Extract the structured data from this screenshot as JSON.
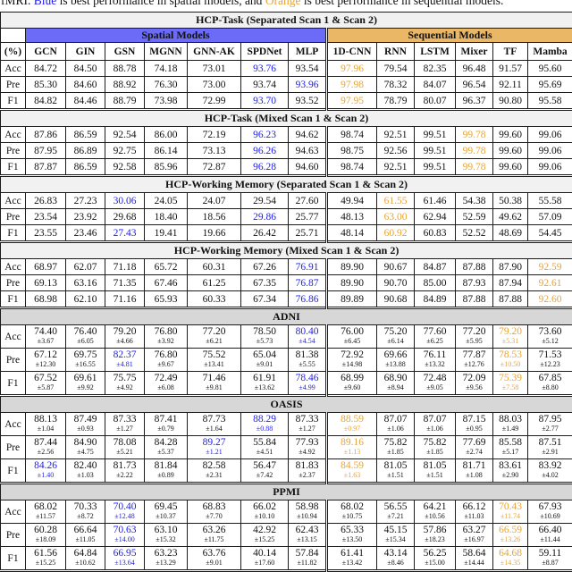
{
  "caption": {
    "prefix": "fMRI. ",
    "highlight_spatial": "Blue",
    "middle": " is best performance in spatial models, and ",
    "highlight_sequential": "Orange",
    "suffix": " is best performance in sequential models."
  },
  "colors": {
    "best_spatial_text": "#1a1aff",
    "best_sequential_text": "#e8a435",
    "spatial_band_bg": "#6b6bf7",
    "sequential_band_bg": "#e9b766",
    "section_header_light_bg": "#f1f1f1",
    "section_header_dark_bg": "#d7d7d7"
  },
  "table": {
    "group_headers": {
      "spatial": "Spatial Models",
      "sequential": "Sequential Models"
    },
    "unit_header": "(%)",
    "columns": [
      "(%)",
      "GCN",
      "GIN",
      "GSN",
      "MGNN",
      "GNN-AK",
      "SPDNet",
      "MLP",
      "1D-CNN",
      "RNN",
      "LSTM",
      "Mixer",
      "TF",
      "Mamba"
    ],
    "sections": [
      {
        "title": "HCP-Task (Separated Scan 1 & Scan 2)",
        "shade": "light",
        "rows": [
          {
            "label": "Acc",
            "values": [
              "84.72",
              "84.50",
              "88.78",
              "74.18",
              "73.01",
              "93.76",
              "93.54",
              "97.96",
              "79.54",
              "82.35",
              "96.48",
              "91.57",
              "95.60"
            ],
            "hl": {
              "5": "blue",
              "7": "orange"
            }
          },
          {
            "label": "Pre",
            "values": [
              "85.30",
              "84.60",
              "88.92",
              "76.30",
              "73.00",
              "93.74",
              "93.96",
              "97.98",
              "78.32",
              "84.07",
              "96.54",
              "92.11",
              "95.69"
            ],
            "hl": {
              "6": "blue",
              "7": "orange"
            }
          },
          {
            "label": "F1",
            "values": [
              "84.82",
              "84.46",
              "88.79",
              "73.98",
              "72.99",
              "93.70",
              "93.52",
              "97.95",
              "78.79",
              "80.07",
              "96.37",
              "90.80",
              "95.58"
            ],
            "hl": {
              "5": "blue",
              "7": "orange"
            }
          }
        ]
      },
      {
        "title": "HCP-Task (Mixed Scan 1 & Scan 2)",
        "shade": "light",
        "rows": [
          {
            "label": "Acc",
            "values": [
              "87.86",
              "86.59",
              "92.54",
              "86.00",
              "72.19",
              "96.23",
              "94.62",
              "98.74",
              "92.51",
              "99.51",
              "99.78",
              "99.60",
              "99.06"
            ],
            "hl": {
              "5": "blue",
              "10": "orange"
            }
          },
          {
            "label": "Pre",
            "values": [
              "87.95",
              "86.89",
              "92.75",
              "86.14",
              "73.13",
              "96.26",
              "94.63",
              "98.75",
              "92.56",
              "99.51",
              "99.78",
              "99.60",
              "99.06"
            ],
            "hl": {
              "5": "blue",
              "10": "orange"
            }
          },
          {
            "label": "F1",
            "values": [
              "87.87",
              "86.59",
              "92.58",
              "85.96",
              "72.87",
              "96.28",
              "94.60",
              "98.74",
              "92.51",
              "99.51",
              "99.78",
              "99.60",
              "99.06"
            ],
            "hl": {
              "5": "blue",
              "10": "orange"
            }
          }
        ]
      },
      {
        "title": "HCP-Working Memory (Separated Scan 1 & Scan 2)",
        "shade": "light",
        "rows": [
          {
            "label": "Acc",
            "values": [
              "26.83",
              "27.23",
              "30.06",
              "24.05",
              "24.07",
              "29.54",
              "27.60",
              "49.94",
              "61.55",
              "61.46",
              "54.38",
              "50.38",
              "55.58"
            ],
            "hl": {
              "2": "blue",
              "8": "orange"
            }
          },
          {
            "label": "Pre",
            "values": [
              "23.54",
              "23.92",
              "29.68",
              "18.40",
              "18.56",
              "29.86",
              "25.77",
              "48.13",
              "63.00",
              "62.94",
              "52.59",
              "49.62",
              "57.09"
            ],
            "hl": {
              "5": "blue",
              "8": "orange"
            }
          },
          {
            "label": "F1",
            "values": [
              "23.55",
              "23.46",
              "27.43",
              "19.41",
              "19.66",
              "26.42",
              "25.71",
              "48.14",
              "60.92",
              "60.83",
              "52.52",
              "48.69",
              "54.45"
            ],
            "hl": {
              "2": "blue",
              "8": "orange"
            }
          }
        ]
      },
      {
        "title": "HCP-Working Memory (Mixed Scan 1 & Scan 2)",
        "shade": "light",
        "rows": [
          {
            "label": "Acc",
            "values": [
              "68.97",
              "62.07",
              "71.18",
              "65.72",
              "60.31",
              "67.26",
              "76.91",
              "89.90",
              "90.67",
              "84.87",
              "87.88",
              "87.90",
              "92.59"
            ],
            "hl": {
              "6": "blue",
              "12": "orange"
            }
          },
          {
            "label": "Pre",
            "values": [
              "69.13",
              "63.16",
              "71.35",
              "67.46",
              "61.25",
              "67.35",
              "76.87",
              "89.90",
              "90.70",
              "85.00",
              "87.93",
              "87.94",
              "92.61"
            ],
            "hl": {
              "6": "blue",
              "12": "orange"
            }
          },
          {
            "label": "F1",
            "values": [
              "68.98",
              "62.10",
              "71.16",
              "65.93",
              "60.33",
              "67.34",
              "76.86",
              "89.89",
              "90.68",
              "84.89",
              "87.88",
              "87.88",
              "92.60"
            ],
            "hl": {
              "6": "blue",
              "12": "orange"
            }
          }
        ]
      },
      {
        "title": "ADNI",
        "shade": "dark",
        "rows": [
          {
            "label": "Acc",
            "values": [
              "74.40",
              "76.40",
              "79.20",
              "76.80",
              "77.20",
              "78.50",
              "80.40",
              "76.00",
              "75.20",
              "77.60",
              "77.20",
              "79.20",
              "73.60"
            ],
            "stds": [
              "±3.67",
              "±6.05",
              "±4.66",
              "±3.92",
              "±6.21",
              "±5.73",
              "±4.54",
              "±6.45",
              "±6.14",
              "±6.25",
              "±5.95",
              "±5.31",
              "±5.12"
            ],
            "hl": {
              "6": "blue",
              "11": "orange"
            }
          },
          {
            "label": "Pre",
            "values": [
              "67.12",
              "69.75",
              "82.37",
              "76.80",
              "75.52",
              "65.04",
              "81.38",
              "72.92",
              "69.66",
              "76.11",
              "77.87",
              "78.53",
              "71.53"
            ],
            "stds": [
              "±12.30",
              "±16.55",
              "±4.81",
              "±9.67",
              "±13.41",
              "±9.01",
              "±5.55",
              "±14.98",
              "±13.88",
              "±13.32",
              "±12.76",
              "±10.50",
              "±12.23"
            ],
            "hl": {
              "2": "blue",
              "11": "orange"
            }
          },
          {
            "label": "F1",
            "values": [
              "67.52",
              "69.61",
              "75.75",
              "72.49",
              "71.46",
              "61.91",
              "78.46",
              "68.99",
              "68.90",
              "72.48",
              "72.09",
              "75.39",
              "67.85"
            ],
            "stds": [
              "±5.87",
              "±9.92",
              "±4.92",
              "±6.08",
              "±9.81",
              "±13.62",
              "±4.99",
              "±9.60",
              "±8.94",
              "±9.05",
              "±9.56",
              "±7.58",
              "±8.80"
            ],
            "hl": {
              "6": "blue",
              "11": "orange"
            }
          }
        ]
      },
      {
        "title": "OASIS",
        "shade": "dark",
        "rows": [
          {
            "label": "Acc",
            "values": [
              "88.13",
              "87.49",
              "87.33",
              "87.41",
              "87.73",
              "88.29",
              "87.33",
              "88.59",
              "87.07",
              "87.07",
              "87.15",
              "88.03",
              "87.95"
            ],
            "stds": [
              "±1.04",
              "±0.93",
              "±1.27",
              "±0.79",
              "±1.64",
              "±0.88",
              "±1.27",
              "±0.97",
              "±1.06",
              "±1.06",
              "±0.95",
              "±1.49",
              "±2.77"
            ],
            "hl": {
              "5": "blue",
              "7": "orange"
            }
          },
          {
            "label": "Pre",
            "values": [
              "87.44",
              "84.90",
              "78.08",
              "84.28",
              "89.27",
              "55.84",
              "77.93",
              "89.16",
              "75.82",
              "75.82",
              "77.69",
              "85.58",
              "87.51"
            ],
            "stds": [
              "±2.56",
              "±4.75",
              "±5.21",
              "±5.37",
              "±1.21",
              "±4.51",
              "±4.92",
              "±1.13",
              "±1.85",
              "±1.85",
              "±2.74",
              "±5.17",
              "±2.91"
            ],
            "hl": {
              "4": "blue",
              "7": "orange"
            }
          },
          {
            "label": "F1",
            "values": [
              "84.26",
              "82.40",
              "81.73",
              "81.84",
              "82.58",
              "56.47",
              "81.83",
              "84.59",
              "81.05",
              "81.05",
              "81.71",
              "83.61",
              "83.92"
            ],
            "stds": [
              "±1.40",
              "±1.03",
              "±2.22",
              "±0.89",
              "±2.31",
              "±7.42",
              "±2.37",
              "±1.63",
              "±1.51",
              "±1.51",
              "±1.08",
              "±2.90",
              "±4.02"
            ],
            "hl": {
              "0": "blue",
              "7": "orange"
            }
          }
        ]
      },
      {
        "title": "PPMI",
        "shade": "dark",
        "rows": [
          {
            "label": "Acc",
            "values": [
              "68.02",
              "70.33",
              "70.40",
              "69.45",
              "68.83",
              "66.02",
              "58.98",
              "68.02",
              "56.55",
              "64.21",
              "66.12",
              "70.43",
              "67.93"
            ],
            "stds": [
              "±11.57",
              "±8.72",
              "±12.48",
              "±10.37",
              "±7.70",
              "±10.10",
              "±10.94",
              "±10.75",
              "±7.21",
              "±10.56",
              "±11.03",
              "±11.74",
              "±10.69"
            ],
            "hl": {
              "2": "blue",
              "11": "orange"
            }
          },
          {
            "label": "Pre",
            "values": [
              "60.28",
              "66.64",
              "70.63",
              "63.10",
              "63.26",
              "42.92",
              "62.43",
              "65.33",
              "45.15",
              "57.86",
              "63.27",
              "66.59",
              "66.40"
            ],
            "stds": [
              "±18.09",
              "±11.05",
              "±14.00",
              "±15.32",
              "±11.75",
              "±15.25",
              "±13.15",
              "±13.50",
              "±15.34",
              "±18.23",
              "±16.97",
              "±13.26",
              "±11.44"
            ],
            "hl": {
              "2": "blue",
              "11": "orange"
            }
          },
          {
            "label": "F1",
            "values": [
              "61.56",
              "64.84",
              "66.95",
              "63.23",
              "63.76",
              "40.14",
              "57.84",
              "61.41",
              "43.14",
              "56.25",
              "58.64",
              "64.68",
              "59.11"
            ],
            "stds": [
              "±15.25",
              "±10.62",
              "±13.64",
              "±13.29",
              "±9.01",
              "±17.60",
              "±11.82",
              "±13.42",
              "±8.46",
              "±15.00",
              "±14.44",
              "±14.35",
              "±8.87"
            ],
            "hl": {
              "2": "blue",
              "11": "orange"
            }
          }
        ]
      }
    ]
  }
}
